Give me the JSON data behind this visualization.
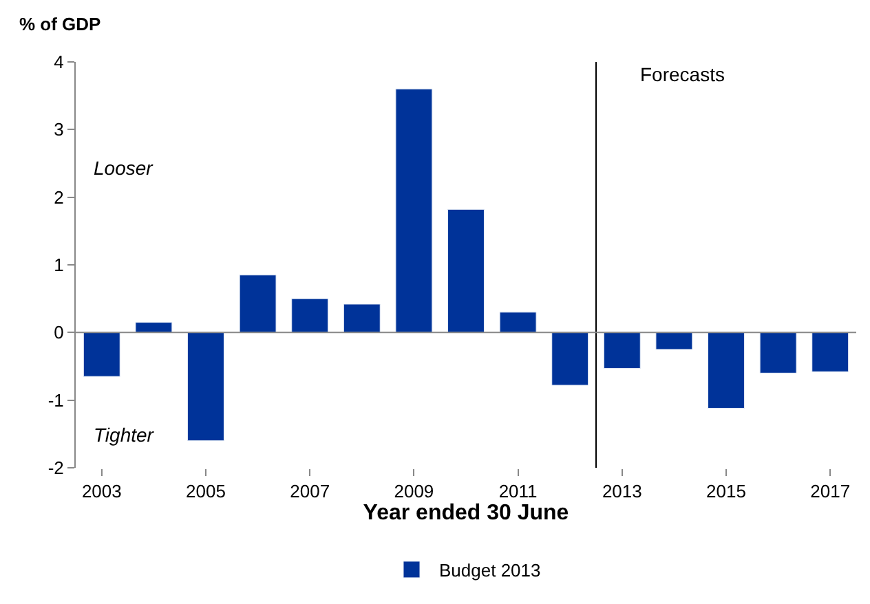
{
  "chart_data": {
    "type": "bar",
    "ylabel": "% of GDP",
    "xlabel": "Year ended 30 June",
    "x": [
      2003,
      2004,
      2005,
      2006,
      2007,
      2008,
      2009,
      2010,
      2011,
      2012,
      2013,
      2014,
      2015,
      2016,
      2017
    ],
    "series": [
      {
        "name": "Budget 2013",
        "color": "#003399",
        "values": [
          -0.65,
          0.15,
          -1.6,
          0.85,
          0.5,
          0.42,
          3.6,
          1.82,
          0.3,
          -0.78,
          -0.53,
          -0.25,
          -1.12,
          -0.6,
          -0.58
        ]
      }
    ],
    "xlim": [
      2002.5,
      2017.5
    ],
    "xticks": [
      2003,
      2005,
      2007,
      2009,
      2011,
      2013,
      2015,
      2017
    ],
    "ylim": [
      -2,
      4
    ],
    "yticks": [
      -2,
      -1,
      0,
      1,
      2,
      3,
      4
    ],
    "ref_lines": [
      {
        "axis": "x",
        "value": 2012.5,
        "color": "#000000"
      },
      {
        "axis": "y",
        "value": 0,
        "color": "#888888"
      }
    ],
    "annotations": [
      "Looser",
      "Tighter",
      "Forecasts"
    ],
    "legend": "bottom"
  }
}
